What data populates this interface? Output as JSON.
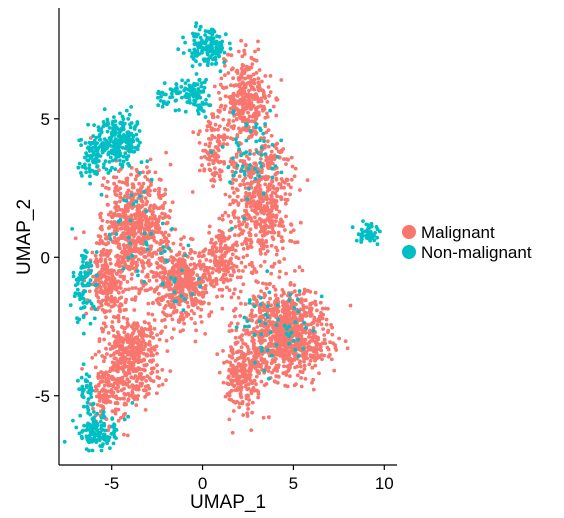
{
  "chart_data": {
    "type": "scatter",
    "title": "",
    "xlabel": "UMAP_1",
    "ylabel": "UMAP_2",
    "xlim": [
      -7.9,
      10.7
    ],
    "ylim": [
      -7.5,
      9.0
    ],
    "x_ticks": [
      -5,
      0,
      5,
      10
    ],
    "y_ticks": [
      -5,
      0,
      5
    ],
    "x_tick_labels": [
      "-5",
      "0",
      "5",
      "10"
    ],
    "y_tick_labels": [
      "-5",
      "0",
      "5"
    ],
    "grid": false,
    "legend_position": "right",
    "series": [
      {
        "name": "Malignant",
        "color": "#F8766D",
        "clusters": [
          {
            "cx": -3.6,
            "cy": 1.1,
            "sx": 1.15,
            "sy": 1.35,
            "n": 650
          },
          {
            "cx": -5.2,
            "cy": -0.8,
            "sx": 0.8,
            "sy": 1.0,
            "n": 260
          },
          {
            "cx": -1.1,
            "cy": -1.0,
            "sx": 1.05,
            "sy": 0.9,
            "n": 460
          },
          {
            "cx": -3.9,
            "cy": -3.6,
            "sx": 1.05,
            "sy": 1.05,
            "n": 430
          },
          {
            "cx": -5.3,
            "cy": -4.9,
            "sx": 0.6,
            "sy": 0.8,
            "n": 120
          },
          {
            "cx": 4.6,
            "cy": -2.8,
            "sx": 1.55,
            "sy": 1.05,
            "n": 880
          },
          {
            "cx": 2.2,
            "cy": -4.2,
            "sx": 0.8,
            "sy": 0.9,
            "n": 220
          },
          {
            "cx": 3.2,
            "cy": 2.1,
            "sx": 1.2,
            "sy": 1.55,
            "n": 560
          },
          {
            "cx": 2.4,
            "cy": 5.8,
            "sx": 0.85,
            "sy": 1.1,
            "n": 300
          },
          {
            "cx": 0.6,
            "cy": 4.0,
            "sx": 0.5,
            "sy": 0.8,
            "n": 110
          },
          {
            "cx": 1.1,
            "cy": 0.0,
            "sx": 0.7,
            "sy": 0.9,
            "n": 170
          }
        ]
      },
      {
        "name": "Non-malignant",
        "color": "#00BFC4",
        "clusters": [
          {
            "cx": -4.6,
            "cy": 4.2,
            "sx": 0.85,
            "sy": 0.6,
            "n": 220
          },
          {
            "cx": -6.1,
            "cy": 3.6,
            "sx": 0.45,
            "sy": 0.55,
            "n": 80
          },
          {
            "cx": -6.5,
            "cy": -1.0,
            "sx": 0.4,
            "sy": 0.9,
            "n": 90
          },
          {
            "cx": -5.7,
            "cy": -6.3,
            "sx": 0.75,
            "sy": 0.45,
            "n": 120
          },
          {
            "cx": -6.4,
            "cy": -4.9,
            "sx": 0.3,
            "sy": 0.6,
            "n": 40
          },
          {
            "cx": 0.3,
            "cy": 7.6,
            "sx": 0.7,
            "sy": 0.5,
            "n": 150
          },
          {
            "cx": -0.3,
            "cy": 5.9,
            "sx": 0.55,
            "sy": 0.5,
            "n": 80
          },
          {
            "cx": -1.7,
            "cy": 5.9,
            "sx": 0.5,
            "sy": 0.35,
            "n": 40
          },
          {
            "cx": 9.1,
            "cy": 0.8,
            "sx": 0.45,
            "sy": 0.25,
            "n": 45
          },
          {
            "cx": 2.7,
            "cy": 3.5,
            "sx": 0.9,
            "sy": 1.1,
            "n": 60
          },
          {
            "cx": 4.0,
            "cy": -2.4,
            "sx": 1.4,
            "sy": 1.0,
            "n": 55
          },
          {
            "cx": -3.6,
            "cy": 0.8,
            "sx": 1.2,
            "sy": 1.5,
            "n": 35
          },
          {
            "cx": -1.2,
            "cy": -1.0,
            "sx": 1.0,
            "sy": 1.0,
            "n": 20
          }
        ]
      }
    ]
  }
}
